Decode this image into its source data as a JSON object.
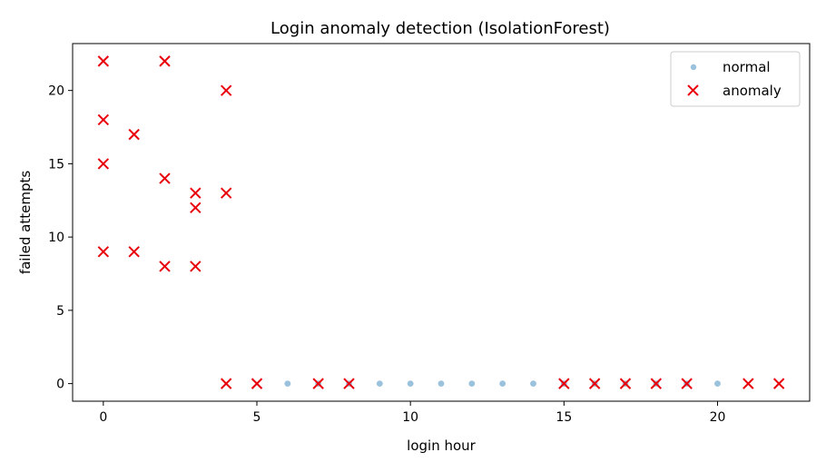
{
  "chart_data": {
    "type": "scatter",
    "title": "Login anomaly detection (IsolationForest)",
    "xlabel": "login hour",
    "ylabel": "failed attempts",
    "xlim": [
      -1,
      23
    ],
    "ylim": [
      -1.2,
      23.2
    ],
    "xticks": [
      0,
      5,
      10,
      15,
      20
    ],
    "yticks": [
      0,
      5,
      10,
      15,
      20
    ],
    "grid": false,
    "legend_position": "top-right",
    "series": [
      {
        "name": "normal",
        "marker": "circle",
        "color": "#1f77b4",
        "points": [
          [
            6,
            0
          ],
          [
            7,
            0
          ],
          [
            8,
            0
          ],
          [
            9,
            0
          ],
          [
            10,
            0
          ],
          [
            11,
            0
          ],
          [
            12,
            0
          ],
          [
            13,
            0
          ],
          [
            14,
            0
          ],
          [
            15,
            0
          ],
          [
            16,
            0
          ],
          [
            17,
            0
          ],
          [
            18,
            0
          ],
          [
            19,
            0
          ],
          [
            20,
            0
          ]
        ]
      },
      {
        "name": "anomaly",
        "marker": "x",
        "color": "#e8000b",
        "points": [
          [
            0,
            22
          ],
          [
            0,
            18
          ],
          [
            0,
            15
          ],
          [
            0,
            9
          ],
          [
            1,
            17
          ],
          [
            1,
            9
          ],
          [
            2,
            22
          ],
          [
            2,
            14
          ],
          [
            2,
            8
          ],
          [
            3,
            13
          ],
          [
            3,
            12
          ],
          [
            3,
            8
          ],
          [
            4,
            20
          ],
          [
            4,
            13
          ],
          [
            4,
            0
          ],
          [
            5,
            0
          ],
          [
            7,
            0
          ],
          [
            8,
            0
          ],
          [
            15,
            0
          ],
          [
            16,
            0
          ],
          [
            17,
            0
          ],
          [
            18,
            0
          ],
          [
            19,
            0
          ],
          [
            21,
            0
          ],
          [
            22,
            0
          ]
        ]
      }
    ]
  }
}
